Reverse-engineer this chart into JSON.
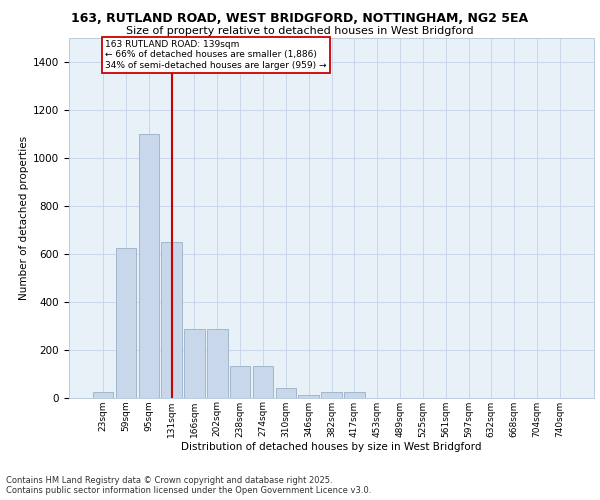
{
  "title_line1": "163, RUTLAND ROAD, WEST BRIDGFORD, NOTTINGHAM, NG2 5EA",
  "title_line2": "Size of property relative to detached houses in West Bridgford",
  "xlabel": "Distribution of detached houses by size in West Bridgford",
  "ylabel": "Number of detached properties",
  "bar_labels": [
    "23sqm",
    "59sqm",
    "95sqm",
    "131sqm",
    "166sqm",
    "202sqm",
    "238sqm",
    "274sqm",
    "310sqm",
    "346sqm",
    "382sqm",
    "417sqm",
    "453sqm",
    "489sqm",
    "525sqm",
    "561sqm",
    "597sqm",
    "632sqm",
    "668sqm",
    "704sqm",
    "740sqm"
  ],
  "bar_values": [
    25,
    625,
    1100,
    650,
    285,
    285,
    130,
    130,
    40,
    10,
    25,
    25,
    0,
    0,
    0,
    0,
    0,
    0,
    0,
    0,
    0
  ],
  "bar_color": "#c8d8ea",
  "bar_edge_color": "#9ab0c8",
  "vline_x": 3.0,
  "marker_label_line1": "163 RUTLAND ROAD: 139sqm",
  "marker_label_line2": "← 66% of detached houses are smaller (1,886)",
  "marker_label_line3": "34% of semi-detached houses are larger (959) →",
  "vline_color": "#cc0000",
  "annotation_box_facecolor": "#ffffff",
  "annotation_box_edgecolor": "#cc0000",
  "ylim": [
    0,
    1500
  ],
  "yticks": [
    0,
    200,
    400,
    600,
    800,
    1000,
    1200,
    1400
  ],
  "grid_color": "#c8d8ea",
  "bg_color": "#e8f0f8",
  "footer_line1": "Contains HM Land Registry data © Crown copyright and database right 2025.",
  "footer_line2": "Contains public sector information licensed under the Open Government Licence v3.0."
}
